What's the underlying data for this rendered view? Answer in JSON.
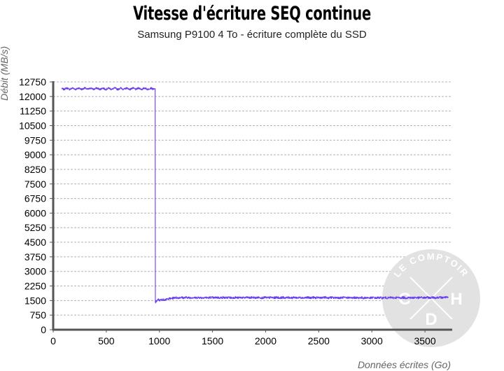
{
  "chart_data": {
    "type": "line",
    "title": "Vitesse d'écriture SEQ continue",
    "subtitle": "Samsung P9100 4 To - écriture complète du SSD",
    "xlabel": "Données écrites (Go)",
    "ylabel": "Débit (MB/s)",
    "xlim": [
      0,
      3750
    ],
    "ylim": [
      0,
      12750
    ],
    "x_ticks": [
      0,
      500,
      1000,
      1500,
      2000,
      2500,
      3000,
      3500
    ],
    "y_ticks": [
      0,
      750,
      1500,
      2250,
      3000,
      3750,
      4500,
      5250,
      6000,
      6750,
      7500,
      8250,
      9000,
      9750,
      10500,
      11250,
      12000,
      12750
    ],
    "grid": true,
    "series": [
      {
        "color": "#6a3df0",
        "x": [
          80,
          960,
          962,
          990,
          1000,
          1050,
          1100,
          1150,
          1200,
          2000,
          2500,
          3000,
          3500,
          3720
        ],
        "y": [
          12400,
          12400,
          1400,
          1550,
          1520,
          1550,
          1600,
          1650,
          1650,
          1650,
          1650,
          1640,
          1650,
          1660
        ]
      }
    ],
    "watermark": {
      "top": "LE COMPTOIR",
      "left": "C",
      "right": "H",
      "bottom": "D"
    }
  }
}
